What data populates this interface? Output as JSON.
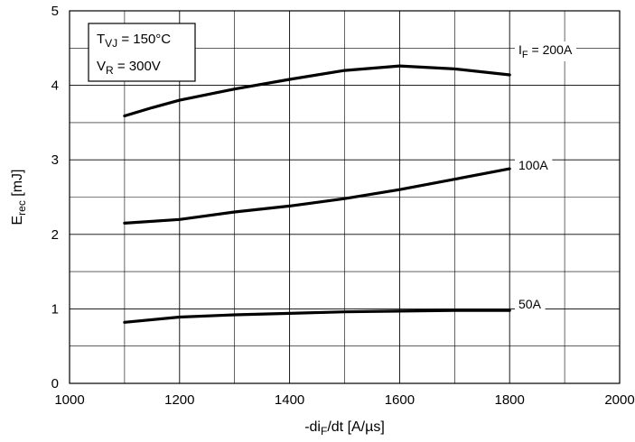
{
  "chart_data": {
    "type": "line",
    "xlabel": {
      "pre": "-di",
      "sub": "F",
      "post": "/dt [A/µs]"
    },
    "ylabel": {
      "main": "E",
      "sub": "rec",
      "post": " [mJ]"
    },
    "xlim": [
      1000,
      2000
    ],
    "ylim": [
      0,
      5
    ],
    "x_ticks": [
      1000,
      1200,
      1400,
      1600,
      1800,
      2000
    ],
    "y_ticks": [
      0,
      1,
      2,
      3,
      4,
      5
    ],
    "grid": true,
    "conditions": {
      "line1": {
        "pre": "T",
        "sub": "VJ",
        "post": " = 150°C"
      },
      "line2": {
        "pre": "V",
        "sub": "R",
        "post": " = 300V"
      }
    },
    "series": [
      {
        "label_pre": "I",
        "label_sub": "F",
        "label_post": " = 200A",
        "x": [
          1100,
          1150,
          1200,
          1300,
          1400,
          1500,
          1600,
          1700,
          1800
        ],
        "y": [
          3.59,
          3.7,
          3.8,
          3.95,
          4.08,
          4.2,
          4.26,
          4.22,
          4.14
        ]
      },
      {
        "label_pre": "",
        "label_sub": "",
        "label_post": "100A",
        "x": [
          1100,
          1200,
          1300,
          1400,
          1500,
          1600,
          1700,
          1800
        ],
        "y": [
          2.15,
          2.2,
          2.3,
          2.38,
          2.48,
          2.6,
          2.74,
          2.88
        ]
      },
      {
        "label_pre": "",
        "label_sub": "",
        "label_post": "50A",
        "x": [
          1100,
          1200,
          1300,
          1400,
          1500,
          1600,
          1700,
          1800
        ],
        "y": [
          0.82,
          0.89,
          0.92,
          0.94,
          0.96,
          0.97,
          0.98,
          0.98
        ]
      }
    ]
  }
}
